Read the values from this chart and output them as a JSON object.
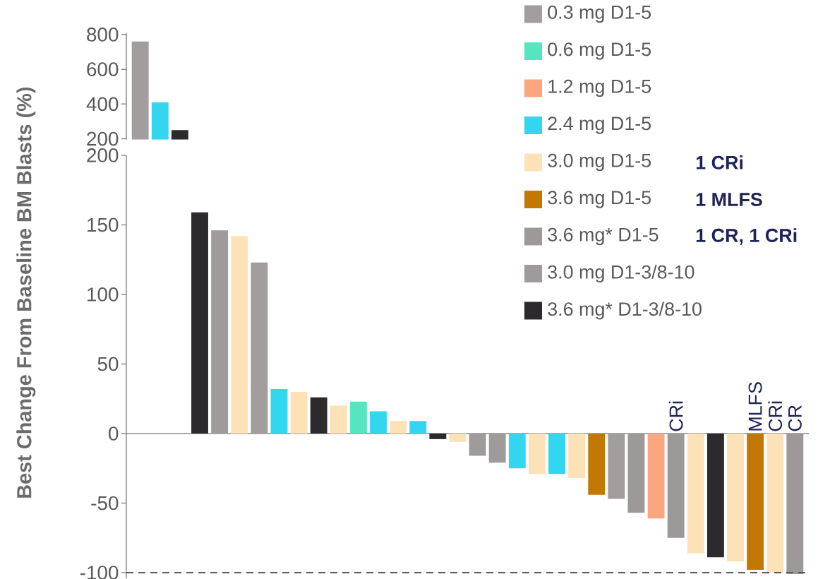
{
  "chart_data": [
    {
      "type": "bar",
      "categories": [
        null,
        null,
        null
      ],
      "values": [
        760,
        410,
        250
      ],
      "colors": [
        "#a39e9e",
        "#33d6ef",
        "#2c2a2c"
      ],
      "ylim": [
        195,
        810
      ],
      "yticks": [
        200,
        400,
        600,
        800
      ],
      "tick_labels": "y"
    },
    {
      "type": "bar",
      "categories": [
        null,
        null,
        null,
        null,
        null,
        null,
        null,
        null,
        null,
        null,
        null,
        null,
        null,
        null,
        null,
        null,
        null,
        null,
        null,
        null,
        null,
        null,
        null,
        null,
        null,
        null,
        null,
        null,
        null,
        null,
        null,
        null,
        null,
        null
      ],
      "ylabel": "Best Change From Baseline BM Blasts (%)",
      "ylim": [
        -104,
        200
      ],
      "yticks": [
        -100,
        -50,
        0,
        50,
        100,
        150,
        200
      ],
      "tick_labels": "y",
      "legend": "top right",
      "series": [
        {
          "name": "0.3 mg D1-5",
          "color": "#a39e9e",
          "values": [
            null,
            null,
            null,
            null,
            null,
            null,
            123,
            null,
            null,
            null,
            null,
            null,
            null,
            null,
            null,
            null,
            null,
            null,
            null,
            null,
            null,
            null,
            null,
            null,
            -47,
            null,
            null,
            null,
            null,
            null,
            null,
            null,
            null,
            null
          ]
        },
        {
          "name": "0.6 mg D1-5",
          "color": "#55e6bf",
          "values": [
            null,
            null,
            null,
            null,
            null,
            null,
            null,
            null,
            null,
            null,
            null,
            23,
            null,
            null,
            null,
            null,
            null,
            null,
            null,
            null,
            null,
            null,
            null,
            null,
            null,
            null,
            null,
            null,
            null,
            null,
            null,
            null,
            null,
            null
          ]
        },
        {
          "name": "1.2 mg D1-5",
          "color": "#fba67f",
          "values": [
            null,
            null,
            null,
            null,
            null,
            null,
            null,
            null,
            null,
            null,
            null,
            null,
            null,
            null,
            null,
            null,
            null,
            null,
            null,
            null,
            null,
            null,
            null,
            null,
            null,
            null,
            -61,
            null,
            null,
            null,
            null,
            null,
            null,
            null
          ]
        },
        {
          "name": "2.4 mg D1-5",
          "color": "#33d6ef",
          "values": [
            null,
            null,
            null,
            null,
            null,
            null,
            null,
            32,
            null,
            null,
            null,
            null,
            16,
            null,
            9,
            null,
            null,
            null,
            null,
            -25,
            null,
            -29,
            null,
            null,
            null,
            null,
            null,
            null,
            null,
            null,
            null,
            null,
            null,
            null
          ]
        },
        {
          "name": "3.0 mg D1-5",
          "color": "#fee2b7",
          "values": [
            null,
            null,
            null,
            null,
            null,
            142,
            null,
            null,
            30,
            null,
            20,
            null,
            null,
            9,
            null,
            null,
            -6,
            null,
            null,
            null,
            -29,
            null,
            -32,
            null,
            null,
            null,
            null,
            null,
            -86,
            null,
            -92,
            null,
            -100,
            null
          ]
        },
        {
          "name": "3.6 mg D1-5",
          "color": "#c27803",
          "values": [
            null,
            null,
            null,
            null,
            null,
            null,
            null,
            null,
            null,
            null,
            null,
            null,
            null,
            null,
            null,
            null,
            null,
            null,
            null,
            null,
            null,
            null,
            null,
            -44,
            null,
            null,
            null,
            null,
            null,
            null,
            null,
            -98,
            null,
            null
          ]
        },
        {
          "name": "3.6 mg* D1-5",
          "color": "#9e9999",
          "values": [
            null,
            null,
            null,
            null,
            null,
            null,
            null,
            null,
            null,
            null,
            null,
            null,
            null,
            null,
            null,
            null,
            null,
            null,
            null,
            null,
            null,
            null,
            null,
            null,
            null,
            -57,
            null,
            -75,
            null,
            null,
            null,
            null,
            null,
            -101
          ]
        },
        {
          "name": "3.0 mg D1-3/8-10",
          "color": "#a09b9b",
          "values": [
            null,
            null,
            null,
            null,
            146,
            null,
            null,
            null,
            null,
            null,
            null,
            null,
            null,
            null,
            null,
            null,
            null,
            -16,
            -21,
            null,
            null,
            null,
            null,
            null,
            null,
            null,
            null,
            null,
            null,
            null,
            null,
            null,
            null,
            null
          ]
        },
        {
          "name": "3.6 mg* D1-3/8-10",
          "color": "#2c2a2c",
          "values": [
            null,
            null,
            null,
            159,
            null,
            null,
            null,
            null,
            null,
            26,
            null,
            null,
            null,
            null,
            null,
            -4,
            null,
            null,
            null,
            null,
            null,
            null,
            null,
            null,
            null,
            null,
            null,
            null,
            null,
            -89,
            null,
            null,
            null,
            null
          ]
        }
      ],
      "ref_lines": [
        {
          "axis": "y",
          "value": -100,
          "color": "#595959",
          "line_style": "dashed"
        }
      ],
      "annotations": [
        "CRi",
        "MLFS",
        "CRi",
        "CR",
        "1 CRi",
        "1 MLFS",
        "1 CR, 1 CRi"
      ]
    }
  ]
}
